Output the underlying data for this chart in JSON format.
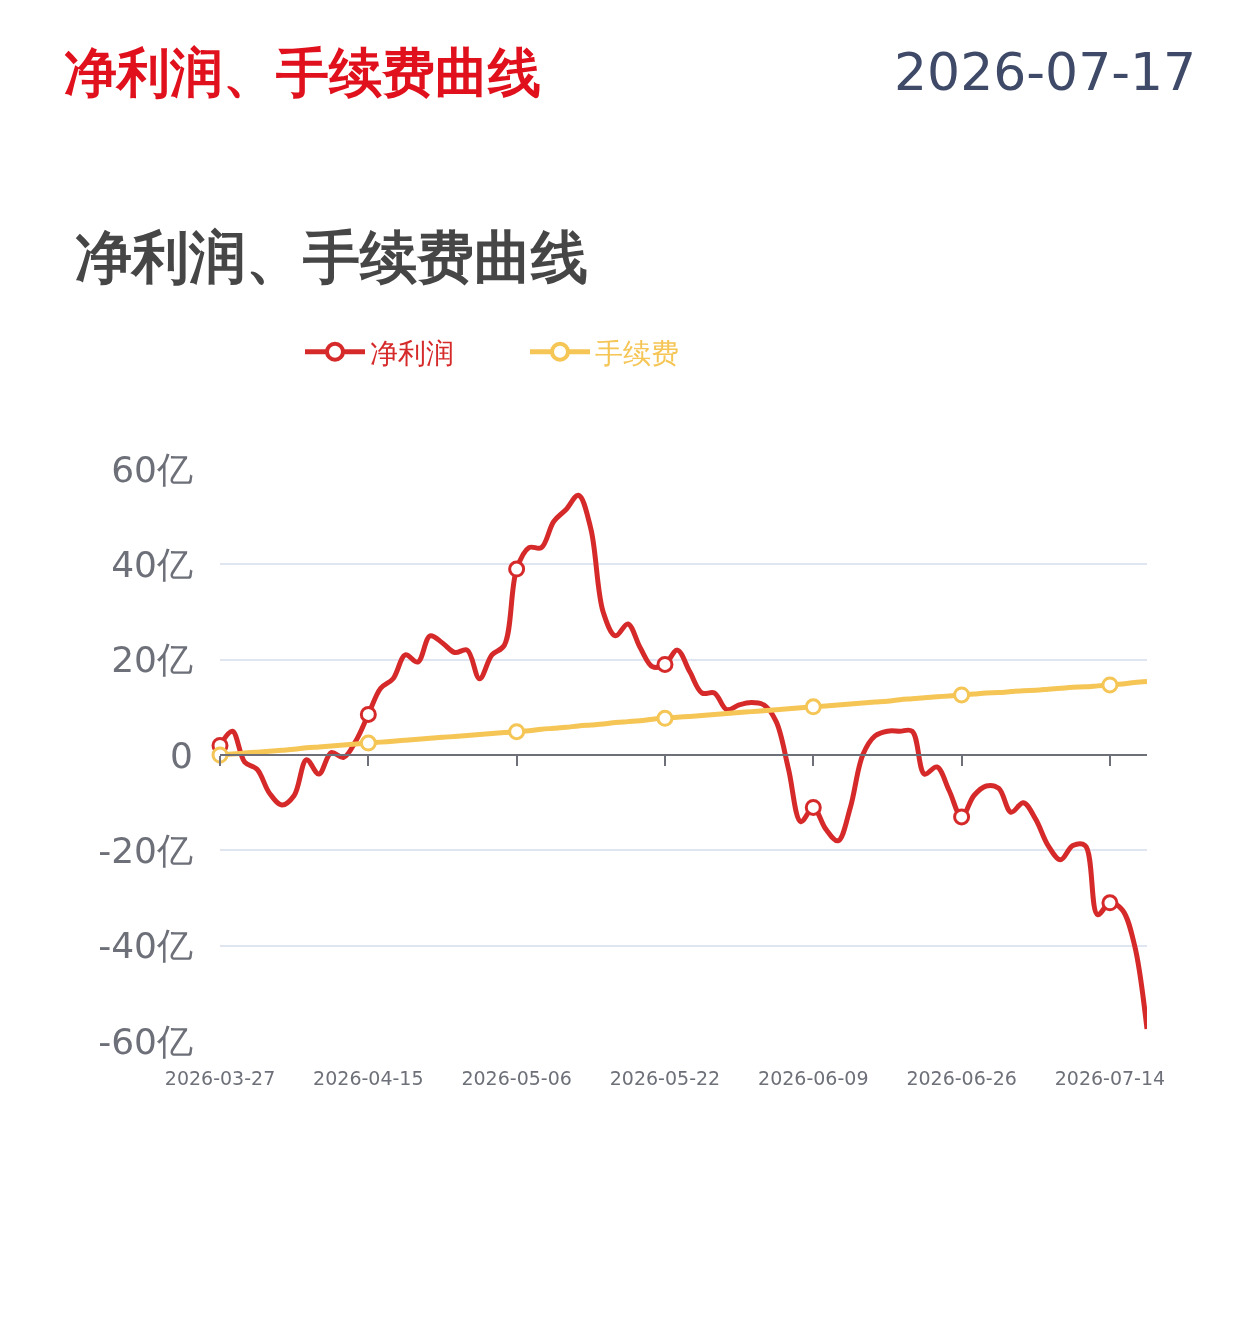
{
  "chart_data": {
    "type": "line",
    "title": "净利润、手续费曲线",
    "annotations": [
      "净利润、手续费曲线",
      "2026-07-17"
    ],
    "categories": [
      "2026-03-27",
      null,
      null,
      null,
      null,
      null,
      null,
      null,
      null,
      null,
      null,
      null,
      "2026-04-15",
      null,
      null,
      null,
      null,
      null,
      null,
      null,
      null,
      null,
      null,
      null,
      "2026-05-06",
      null,
      null,
      null,
      null,
      null,
      null,
      null,
      null,
      null,
      null,
      null,
      "2026-05-22",
      null,
      null,
      null,
      null,
      null,
      null,
      null,
      null,
      null,
      null,
      null,
      "2026-06-09",
      null,
      null,
      null,
      null,
      null,
      null,
      null,
      null,
      null,
      null,
      null,
      "2026-06-26",
      null,
      null,
      null,
      null,
      null,
      null,
      null,
      null,
      null,
      null,
      null,
      "2026-07-14",
      null,
      null,
      null
    ],
    "series": [
      {
        "name": "净利润",
        "color": "#d62a2a",
        "values": [
          2,
          5,
          -1.5,
          -3,
          -8,
          -10.5,
          -8.5,
          -1,
          -4,
          0.5,
          -0.5,
          3,
          8.5,
          14,
          16,
          21,
          19.5,
          25,
          23.5,
          21.5,
          22,
          16,
          21,
          23,
          39,
          43.5,
          43.5,
          49,
          51.5,
          54.5,
          47.5,
          30,
          25,
          27.5,
          22.5,
          18.5,
          19,
          22,
          17.5,
          13,
          13,
          9.5,
          10.5,
          11,
          10.5,
          7,
          -3,
          -14,
          -11,
          -15.5,
          -18,
          -11,
          0,
          4,
          5,
          5,
          5,
          -4,
          -2.5,
          -7.5,
          -13,
          -8.5,
          -6.5,
          -7,
          -12,
          -10,
          -13.5,
          -19,
          -22,
          -19,
          -19,
          -33.5,
          -31,
          -32.5,
          -40,
          -57.5
        ]
      },
      {
        "name": "手续费",
        "color": "#f5c555",
        "values": [
          0,
          0.2,
          0.4,
          0.6,
          0.8,
          1.0,
          1.2,
          1.5,
          1.7,
          1.9,
          2.1,
          2.3,
          2.5,
          2.7,
          2.9,
          3.1,
          3.3,
          3.5,
          3.7,
          3.9,
          4.1,
          4.3,
          4.5,
          4.7,
          4.9,
          5.1,
          5.4,
          5.6,
          5.8,
          6.1,
          6.3,
          6.5,
          6.8,
          7.0,
          7.2,
          7.5,
          7.7,
          7.9,
          8.1,
          8.3,
          8.5,
          8.7,
          8.9,
          9.1,
          9.3,
          9.5,
          9.7,
          9.9,
          10.1,
          10.3,
          10.5,
          10.7,
          10.9,
          11.1,
          11.3,
          11.6,
          11.8,
          12.0,
          12.2,
          12.4,
          12.6,
          12.8,
          13.0,
          13.1,
          13.3,
          13.5,
          13.6,
          13.8,
          14.0,
          14.2,
          14.3,
          14.5,
          14.7,
          14.9,
          15.2,
          15.4
        ]
      }
    ],
    "ylim": [
      -60,
      60
    ],
    "yticks": [
      {
        "value": 60,
        "label": "60亿"
      },
      {
        "value": 40,
        "label": "40亿"
      },
      {
        "value": 20,
        "label": "20亿"
      },
      0,
      {
        "value": -20,
        "label": "-20亿"
      },
      {
        "value": -40,
        "label": "-40亿"
      },
      {
        "value": -60,
        "label": "-60亿"
      }
    ],
    "grid": "y",
    "legend": "top",
    "line_style": "solid"
  }
}
